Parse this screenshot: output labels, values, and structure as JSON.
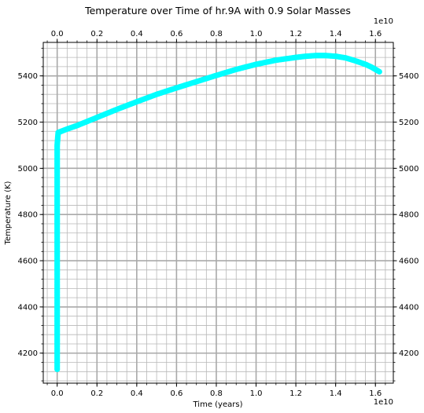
{
  "chart_data": {
    "type": "scatter",
    "title": "Temperature over Time of hr.9A with 0.9 Solar Masses",
    "xlabel": "Time (years)",
    "ylabel": "Temperature (K)",
    "x_offset_label": "1e10",
    "x_offset_label_top": "1e10",
    "x_scale": 10000000000,
    "xlim": [
      -0.07,
      1.69
    ],
    "ylim": [
      4070,
      5545
    ],
    "x_ticks": [
      0.0,
      0.2,
      0.4,
      0.6,
      0.8,
      1.0,
      1.2,
      1.4,
      1.6
    ],
    "x_tick_labels": [
      "0.0",
      "0.2",
      "0.4",
      "0.6",
      "0.8",
      "1.0",
      "1.2",
      "1.4",
      "1.6"
    ],
    "x_minor_step": 0.05,
    "y_ticks": [
      4200,
      4400,
      4600,
      4800,
      5000,
      5200,
      5400
    ],
    "y_tick_labels": [
      "4200",
      "4400",
      "4600",
      "4800",
      "5000",
      "5200",
      "5400"
    ],
    "y_minor_step": 40,
    "grid": true,
    "colors": {
      "marker": "#00ffff",
      "major_grid": "#a9a9a9",
      "minor_grid": "#b8b8b8"
    },
    "series": [
      {
        "name": "",
        "x": [
          0.0,
          0.0,
          0.0,
          0.0,
          0.0,
          0.0,
          0.0,
          0.005,
          0.02,
          0.05,
          0.1,
          0.2,
          0.3,
          0.4,
          0.5,
          0.6,
          0.7,
          0.8,
          0.9,
          1.0,
          1.1,
          1.2,
          1.25,
          1.3,
          1.35,
          1.4,
          1.45,
          1.5,
          1.55,
          1.58,
          1.6,
          1.62
        ],
        "y": [
          4130,
          4300,
          4450,
          4600,
          4800,
          5000,
          5100,
          5155,
          5160,
          5170,
          5185,
          5220,
          5255,
          5288,
          5320,
          5348,
          5375,
          5402,
          5428,
          5450,
          5468,
          5480,
          5485,
          5488,
          5488,
          5485,
          5478,
          5465,
          5450,
          5438,
          5428,
          5418
        ]
      }
    ]
  }
}
